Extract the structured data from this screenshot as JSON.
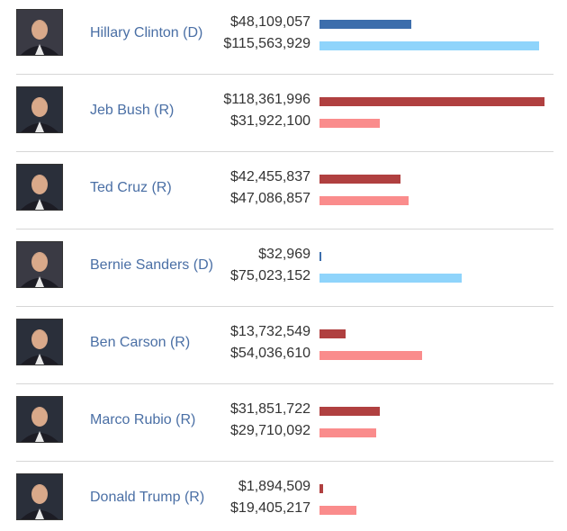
{
  "colors": {
    "dem_primary": "#3d6eac",
    "dem_secondary": "#8fd4fb",
    "rep_primary": "#b04040",
    "rep_secondary": "#fa8c8c",
    "name_text": "#4a6fa5",
    "value_text": "#333333",
    "divider": "#d6d6d6"
  },
  "chart_data": {
    "type": "bar",
    "orientation": "horizontal",
    "title": "",
    "xlabel": "",
    "ylabel": "",
    "xlim": [
      0,
      118361996
    ],
    "grid": false,
    "legend": "none",
    "series_names": [
      "primary_raised",
      "secondary_raised"
    ],
    "candidates": [
      {
        "id": "clinton",
        "name": "Hillary Clinton (D)",
        "party": "D",
        "photo_icon": "hillary-clinton-portrait-icon",
        "primary_value": 48109057,
        "primary_label": "$48,109,057",
        "secondary_value": 115563929,
        "secondary_label": "$115,563,929"
      },
      {
        "id": "bush",
        "name": "Jeb Bush (R)",
        "party": "R",
        "photo_icon": "jeb-bush-portrait-icon",
        "primary_value": 118361996,
        "primary_label": "$118,361,996",
        "secondary_value": 31922100,
        "secondary_label": "$31,922,100"
      },
      {
        "id": "cruz",
        "name": "Ted Cruz (R)",
        "party": "R",
        "photo_icon": "ted-cruz-portrait-icon",
        "primary_value": 42455837,
        "primary_label": "$42,455,837",
        "secondary_value": 47086857,
        "secondary_label": "$47,086,857"
      },
      {
        "id": "sanders",
        "name": "Bernie Sanders (D)",
        "party": "D",
        "photo_icon": "bernie-sanders-portrait-icon",
        "primary_value": 32969,
        "primary_label": "$32,969",
        "secondary_value": 75023152,
        "secondary_label": "$75,023,152"
      },
      {
        "id": "carson",
        "name": "Ben Carson (R)",
        "party": "R",
        "photo_icon": "ben-carson-portrait-icon",
        "primary_value": 13732549,
        "primary_label": "$13,732,549",
        "secondary_value": 54036610,
        "secondary_label": "$54,036,610"
      },
      {
        "id": "rubio",
        "name": "Marco Rubio (R)",
        "party": "R",
        "photo_icon": "marco-rubio-portrait-icon",
        "primary_value": 31851722,
        "primary_label": "$31,851,722",
        "secondary_value": 29710092,
        "secondary_label": "$29,710,092"
      },
      {
        "id": "trump",
        "name": "Donald Trump (R)",
        "party": "R",
        "photo_icon": "donald-trump-portrait-icon",
        "primary_value": 1894509,
        "primary_label": "$1,894,509",
        "secondary_value": 19405217,
        "secondary_label": "$19,405,217"
      }
    ]
  }
}
